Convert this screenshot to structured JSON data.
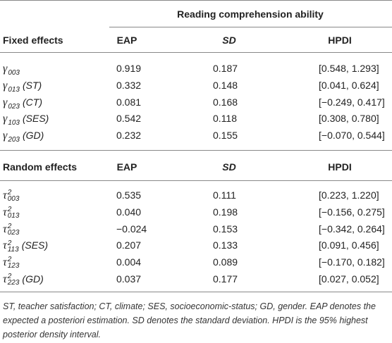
{
  "table": {
    "spanning_header": "Reading comprehension ability",
    "sections": [
      {
        "header": [
          "Fixed effects",
          "EAP",
          "SD",
          "HPDI"
        ],
        "rows": [
          [
            {
              "symbol": "γ",
              "sub": "003"
            },
            "0.919",
            "0.187",
            "[0.548, 1.293]"
          ],
          [
            {
              "symbol": "γ",
              "sub": "013",
              "note": "(ST)"
            },
            "0.332",
            "0.148",
            "[0.041, 0.624]"
          ],
          [
            {
              "symbol": "γ",
              "sub": "023",
              "note": "(CT)"
            },
            "0.081",
            "0.168",
            "[−0.249, 0.417]"
          ],
          [
            {
              "symbol": "γ",
              "sub": "103",
              "note": "(SES)"
            },
            "0.542",
            "0.118",
            "[0.308, 0.780]"
          ],
          [
            {
              "symbol": "γ",
              "sub": "203",
              "note": "(GD)"
            },
            "0.232",
            "0.155",
            "[−0.070, 0.544]"
          ]
        ]
      },
      {
        "header": [
          "Random effects",
          "EAP",
          "SD",
          "HPDI"
        ],
        "rows": [
          [
            {
              "symbol": "τ",
              "sup": "2",
              "sub": "003"
            },
            "0.535",
            "0.111",
            "[0.223, 1.220]"
          ],
          [
            {
              "symbol": "τ",
              "sup": "2",
              "sub": "013"
            },
            "0.040",
            "0.198",
            "[−0.156, 0.275]"
          ],
          [
            {
              "symbol": "τ",
              "sup": "2",
              "sub": "023"
            },
            "−0.024",
            "0.153",
            "[−0.342, 0.264]"
          ],
          [
            {
              "symbol": "τ",
              "sup": "2",
              "sub": "113",
              "note": "(SES)"
            },
            "0.207",
            "0.133",
            "[0.091, 0.456]"
          ],
          [
            {
              "symbol": "τ",
              "sup": "2",
              "sub": "123"
            },
            "0.004",
            "0.089",
            "[−0.170, 0.182]"
          ],
          [
            {
              "symbol": "τ",
              "sup": "2",
              "sub": "223",
              "note": "(GD)"
            },
            "0.037",
            "0.177",
            "[0.027, 0.052]"
          ]
        ]
      }
    ],
    "footnote": "ST, teacher satisfaction; CT, climate; SES, socioeconomic-status; GD, gender. EAP denotes the expected a posteriori estimation. SD denotes the standard deviation. HPDI is the 95% highest posterior density interval."
  }
}
